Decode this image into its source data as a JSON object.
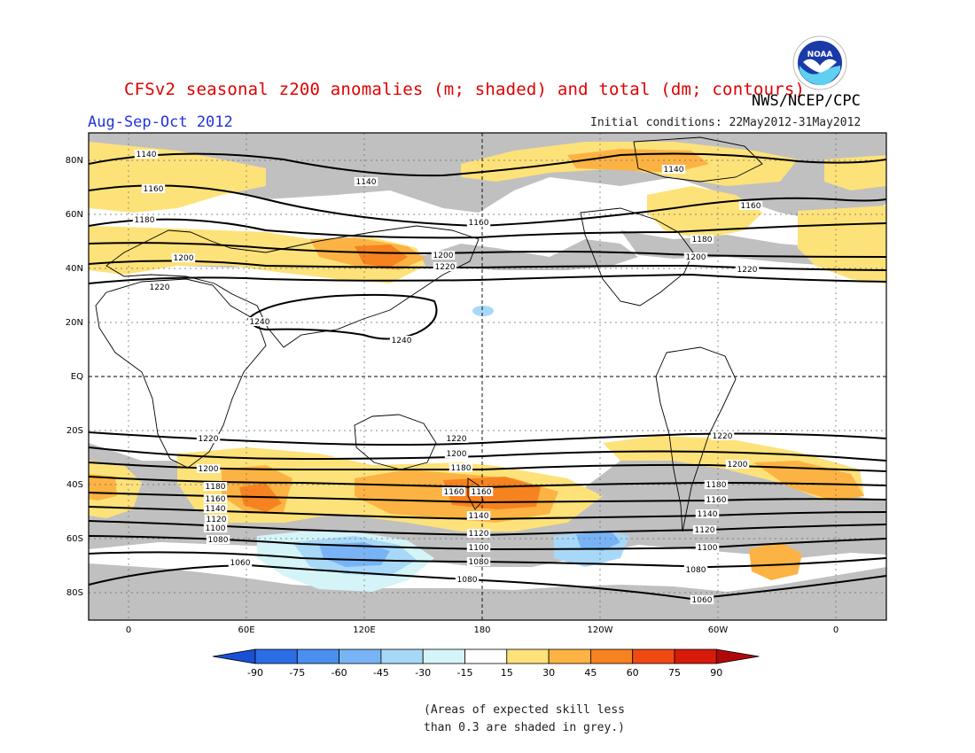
{
  "header": {
    "title": "CFSv2 seasonal z200 anomalies (m; shaded) and total (dm; contours)",
    "agency": "NWS/NCEP/CPC",
    "season": "Aug-Sep-Oct 2012",
    "initial_conditions": "Initial conditions: 22May2012-31May2012",
    "logo_text": "NOAA"
  },
  "map": {
    "lat_labels": [
      "80N",
      "60N",
      "40N",
      "20N",
      "EQ",
      "20S",
      "40S",
      "60S",
      "80S"
    ],
    "lon_labels": [
      "0",
      "60E",
      "120E",
      "180",
      "120W",
      "60W",
      "0"
    ],
    "contour_labels": [
      "1140",
      "1140",
      "1140",
      "1160",
      "1160",
      "1180",
      "1180",
      "1160",
      "1200",
      "1200",
      "1200",
      "1220",
      "1220",
      "1220",
      "1240",
      "1240",
      "1220",
      "1220",
      "1220",
      "1200",
      "1200",
      "1200",
      "1180",
      "1180",
      "1180",
      "1160",
      "1160",
      "1160",
      "1160",
      "1140",
      "1140",
      "1140",
      "1120",
      "1120",
      "1120",
      "1100",
      "1100",
      "1100",
      "1080",
      "1080",
      "1080",
      "1080",
      "1060",
      "1060"
    ]
  },
  "colorbar": {
    "labels": [
      "-90",
      "-75",
      "-60",
      "-45",
      "-30",
      "-15",
      "15",
      "30",
      "45",
      "60",
      "75",
      "90"
    ],
    "colors": [
      "#1a4fd6",
      "#2a6ee6",
      "#4a8ff0",
      "#78b4f5",
      "#a8d8f8",
      "#d4f4f8",
      "#ffffff",
      "#fde27a",
      "#fcb343",
      "#f78220",
      "#f04a12",
      "#d81a0a",
      "#b00808"
    ]
  },
  "footnote": {
    "line1": "(Areas of expected skill less",
    "line2": "than 0.3 are shaded in grey.)"
  }
}
